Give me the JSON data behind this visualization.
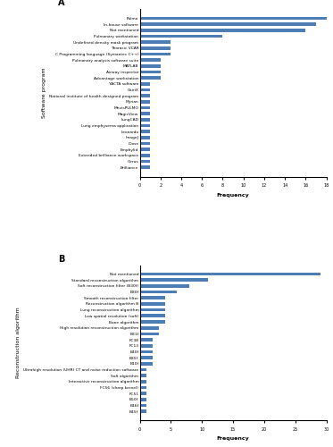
{
  "chart_A": {
    "title": "A",
    "ylabel": "Software program",
    "xlabel": "Frequency",
    "categories": [
      "Pulmo",
      "In-house software",
      "Not mentioned",
      "Pulmonary workstation",
      "Undefined density mask program",
      "Thoracic VCAR",
      "C Programming language (Symantec C++)",
      "Pulmonary analysis software suite",
      "MATLAB",
      "Airway inspector",
      "Advantage workstation",
      "YACTA software",
      "OsiriX",
      "National institute of health designed program",
      "Myrian",
      "MevisPULMO",
      "MagicView",
      "LungCAD",
      "Lung emphysema application",
      "Leonardo",
      "ImageJ",
      "iDose",
      "Emphylid",
      "Extended brilliance workspace",
      "Cirrus",
      "Brilliance"
    ],
    "values": [
      18,
      17,
      16,
      8,
      3,
      3,
      3,
      2,
      2,
      2,
      2,
      1,
      1,
      1,
      1,
      1,
      1,
      1,
      1,
      1,
      1,
      1,
      1,
      1,
      1,
      1
    ],
    "xlim": [
      0,
      18
    ],
    "xticks": [
      0,
      2,
      4,
      6,
      8,
      10,
      12,
      14,
      16,
      18
    ],
    "bar_color": "#4c7db5"
  },
  "chart_B": {
    "title": "B",
    "ylabel": "Reconstruction algorithm",
    "xlabel": "Frequency",
    "categories": [
      "Not mentioned",
      "Standard reconstruction algorithm",
      "Soft reconstruction filter (B30f)",
      "B30f",
      "Smooth reconstruction filter",
      "Reconstruction algorithm B",
      "Lung reconstruction algorithm",
      "Low spatial resolution (soft)",
      "Bone algorithm",
      "High resolution reconstruction algorithm",
      "B31f",
      "FC38",
      "FC13",
      "B40f",
      "B35f",
      "B10f",
      "Ultrahigh resolution (UHR) CT and noise reduction software",
      "Soft algorithm",
      "Interactive reconstruction algorithm",
      "FC56 (sharp kernel)",
      "FC51",
      "B50f",
      "B46f",
      "B45f"
    ],
    "values": [
      29,
      11,
      8,
      6,
      4,
      4,
      4,
      4,
      4,
      3,
      3,
      2,
      2,
      2,
      2,
      2,
      1,
      1,
      1,
      1,
      1,
      1,
      1,
      1
    ],
    "xlim": [
      0,
      30
    ],
    "xticks": [
      0,
      5,
      10,
      15,
      20,
      25,
      30
    ],
    "bar_color": "#4c7db5"
  }
}
